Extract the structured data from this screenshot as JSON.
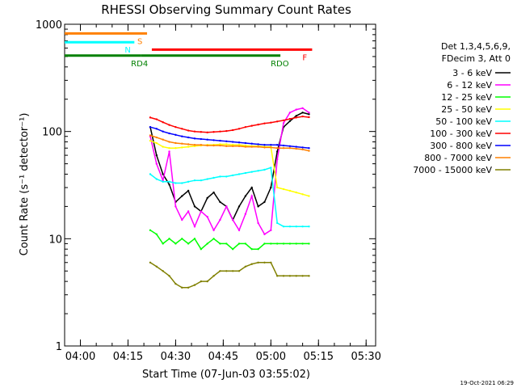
{
  "chart_data": {
    "type": "line",
    "title": "RHESSI Observing Summary Count Rates",
    "ylabel": "Count Rate (s⁻¹ detector⁻¹)",
    "xlabel": "Start Time (07-Jun-03 03:55:02)",
    "y_scale": "log",
    "ylim": [
      1,
      1000
    ],
    "y_ticks": [
      {
        "value": 1,
        "label": "1"
      },
      {
        "value": 10,
        "label": "10"
      },
      {
        "value": 100,
        "label": "100"
      },
      {
        "value": 1000,
        "label": "1000"
      }
    ],
    "xlim": [
      "03:55:02",
      "05:33:00"
    ],
    "x_ticks": [
      "04:00",
      "04:15",
      "04:30",
      "04:45",
      "05:00",
      "05:15",
      "05:30"
    ],
    "legend": {
      "placement": "right",
      "header": [
        "Det 1,3,4,5,6,9,",
        "FDecim 3, Att 0"
      ]
    },
    "series": [
      {
        "name": "3 - 6 keV",
        "color": "#000000",
        "x": [
          "04:22",
          "04:24",
          "04:26",
          "04:28",
          "04:30",
          "04:32",
          "04:34",
          "04:36",
          "04:38",
          "04:40",
          "04:42",
          "04:44",
          "04:46",
          "04:48",
          "04:50",
          "04:52",
          "04:54",
          "04:56",
          "04:58",
          "05:00",
          "05:02",
          "05:04",
          "05:06",
          "05:08",
          "05:10",
          "05:12"
        ],
        "values": [
          110,
          60,
          40,
          32,
          22,
          25,
          28,
          20,
          18,
          24,
          27,
          22,
          20,
          15,
          20,
          25,
          30,
          20,
          22,
          30,
          65,
          110,
          125,
          140,
          150,
          145
        ]
      },
      {
        "name": "6 - 12 keV",
        "color": "#ff00ff",
        "x": [
          "04:22",
          "04:24",
          "04:26",
          "04:28",
          "04:30",
          "04:32",
          "04:34",
          "04:36",
          "04:38",
          "04:40",
          "04:42",
          "04:44",
          "04:46",
          "04:48",
          "04:50",
          "04:52",
          "04:54",
          "04:56",
          "04:58",
          "05:00",
          "05:02",
          "05:04",
          "05:06",
          "05:08",
          "05:10",
          "05:12"
        ],
        "values": [
          90,
          50,
          35,
          65,
          20,
          15,
          18,
          13,
          18,
          16,
          12,
          15,
          20,
          15,
          12,
          17,
          25,
          14,
          11,
          12,
          55,
          120,
          150,
          160,
          165,
          150
        ]
      },
      {
        "name": "12 - 25 keV",
        "color": "#00ff00",
        "x": [
          "04:22",
          "04:24",
          "04:26",
          "04:28",
          "04:30",
          "04:32",
          "04:34",
          "04:36",
          "04:38",
          "04:40",
          "04:42",
          "04:44",
          "04:46",
          "04:48",
          "04:50",
          "04:52",
          "04:54",
          "04:56",
          "04:58",
          "05:00",
          "05:02",
          "05:04",
          "05:06",
          "05:08",
          "05:10",
          "05:12"
        ],
        "values": [
          12,
          11,
          9,
          10,
          9,
          10,
          9,
          10,
          8,
          9,
          10,
          9,
          9,
          8,
          9,
          9,
          8,
          8,
          9,
          9,
          9,
          9,
          9,
          9,
          9,
          9
        ]
      },
      {
        "name": "25 - 50 keV",
        "color": "#ffff00",
        "x": [
          "04:22",
          "04:24",
          "04:26",
          "04:28",
          "04:30",
          "04:32",
          "04:34",
          "04:36",
          "04:38",
          "04:40",
          "04:42",
          "04:44",
          "04:46",
          "04:48",
          "04:50",
          "04:52",
          "04:54",
          "04:56",
          "04:58",
          "05:00",
          "05:02",
          "05:04",
          "05:06",
          "05:08",
          "05:10",
          "05:12"
        ],
        "values": [
          82,
          78,
          72,
          70,
          70,
          71,
          72,
          73,
          74,
          75,
          75,
          76,
          76,
          75,
          75,
          74,
          73,
          73,
          72,
          72,
          30,
          29,
          28,
          27,
          26,
          25
        ]
      },
      {
        "name": "50 - 100 keV",
        "color": "#00ffff",
        "x": [
          "04:22",
          "04:24",
          "04:26",
          "04:28",
          "04:30",
          "04:32",
          "04:34",
          "04:36",
          "04:38",
          "04:40",
          "04:42",
          "04:44",
          "04:46",
          "04:48",
          "04:50",
          "04:52",
          "04:54",
          "04:56",
          "04:58",
          "05:00",
          "05:02",
          "05:04",
          "05:06",
          "05:08",
          "05:10",
          "05:12"
        ],
        "values": [
          40,
          36,
          34,
          34,
          33,
          33,
          34,
          35,
          35,
          36,
          37,
          38,
          38,
          39,
          40,
          41,
          42,
          43,
          44,
          46,
          14,
          13,
          13,
          13,
          13,
          13
        ]
      },
      {
        "name": "100 - 300 keV",
        "color": "#ff0000",
        "x": [
          "04:22",
          "04:24",
          "04:26",
          "04:28",
          "04:30",
          "04:32",
          "04:34",
          "04:36",
          "04:38",
          "04:40",
          "04:42",
          "04:44",
          "04:46",
          "04:48",
          "04:50",
          "04:52",
          "04:54",
          "04:56",
          "04:58",
          "05:00",
          "05:02",
          "05:04",
          "05:06",
          "05:08",
          "05:10",
          "05:12"
        ],
        "values": [
          135,
          130,
          122,
          115,
          110,
          106,
          102,
          100,
          99,
          98,
          99,
          100,
          101,
          103,
          106,
          110,
          113,
          116,
          119,
          121,
          124,
          127,
          131,
          135,
          138,
          136
        ]
      },
      {
        "name": "300 - 800 keV",
        "color": "#0000ff",
        "x": [
          "04:22",
          "04:24",
          "04:26",
          "04:28",
          "04:30",
          "04:32",
          "04:34",
          "04:36",
          "04:38",
          "04:40",
          "04:42",
          "04:44",
          "04:46",
          "04:48",
          "04:50",
          "04:52",
          "04:54",
          "04:56",
          "04:58",
          "05:00",
          "05:02",
          "05:04",
          "05:06",
          "05:08",
          "05:10",
          "05:12"
        ],
        "values": [
          110,
          106,
          100,
          96,
          93,
          90,
          88,
          86,
          85,
          84,
          83,
          82,
          81,
          80,
          79,
          78,
          77,
          76,
          75,
          75,
          75,
          74,
          73,
          72,
          71,
          70
        ]
      },
      {
        "name": "800 - 7000 keV",
        "color": "#ff8000",
        "x": [
          "04:22",
          "04:24",
          "04:26",
          "04:28",
          "04:30",
          "04:32",
          "04:34",
          "04:36",
          "04:38",
          "04:40",
          "04:42",
          "04:44",
          "04:46",
          "04:48",
          "04:50",
          "04:52",
          "04:54",
          "04:56",
          "04:58",
          "05:00",
          "05:02",
          "05:04",
          "05:06",
          "05:08",
          "05:10",
          "05:12"
        ],
        "values": [
          92,
          88,
          84,
          80,
          78,
          77,
          76,
          75,
          75,
          74,
          74,
          74,
          73,
          73,
          73,
          72,
          72,
          72,
          71,
          71,
          70,
          70,
          70,
          69,
          68,
          66
        ]
      },
      {
        "name": "7000 - 15000 keV",
        "color": "#808000",
        "x": [
          "04:22",
          "04:24",
          "04:26",
          "04:28",
          "04:30",
          "04:32",
          "04:34",
          "04:36",
          "04:38",
          "04:40",
          "04:42",
          "04:44",
          "04:46",
          "04:48",
          "04:50",
          "04:52",
          "04:54",
          "04:56",
          "04:58",
          "05:00",
          "05:02",
          "05:04",
          "05:06",
          "05:08",
          "05:10",
          "05:12"
        ],
        "values": [
          6,
          5.5,
          5,
          4.5,
          3.8,
          3.5,
          3.5,
          3.7,
          4,
          4,
          4.5,
          5,
          5,
          5,
          5,
          5.5,
          5.8,
          6,
          6,
          6,
          4.5,
          4.5,
          4.5,
          4.5,
          4.5,
          4.5
        ]
      }
    ],
    "segments": [
      {
        "label": "S",
        "color": "#ff8000",
        "start": "03:55:02",
        "end": "04:21:00",
        "value": 820
      },
      {
        "label": "N",
        "color": "#00ffff",
        "start": "03:55:02",
        "end": "04:17:00",
        "value": 680
      },
      {
        "label": "F",
        "color": "#ff0000",
        "start": "04:22:30",
        "end": "05:13:00",
        "value": 580
      },
      {
        "label": "RD4",
        "color": "#008000",
        "start": "03:55:02",
        "end": "04:19:00",
        "value": 510
      },
      {
        "label": "RDO",
        "color": "#008000",
        "start": "04:19:00",
        "end": "05:03:00",
        "value": 510
      }
    ],
    "footer_timestamp": "19-Oct-2021 06:29"
  }
}
